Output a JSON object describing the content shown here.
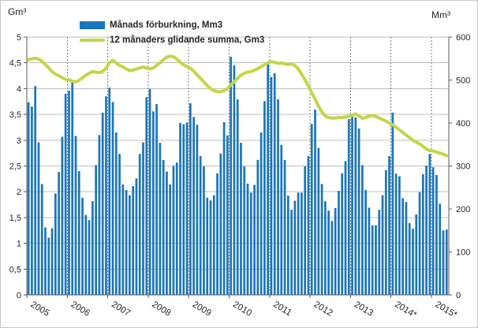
{
  "chart_data": {
    "type": "bar+line",
    "title": "",
    "left_axis": {
      "label": "Gm³",
      "min": 0,
      "max": 5,
      "tick_step": 0.5,
      "tick_labels": [
        "5",
        "4,5",
        "4",
        "3,5",
        "3",
        "2,5",
        "2",
        "1,5",
        "1",
        "0,5",
        "0"
      ]
    },
    "right_axis": {
      "label": "Mm³",
      "min": 0,
      "max": 600,
      "tick_step": 100,
      "tick_labels": [
        "600",
        "500",
        "400",
        "300",
        "200",
        "100",
        "0"
      ]
    },
    "x_axis": {
      "year_labels": [
        "2005",
        "2006",
        "2007",
        "2008",
        "2009",
        "2010",
        "2011",
        "2012",
        "2013",
        "2014*",
        "2015*"
      ],
      "months_per_year": 12,
      "last_year_months": 5
    },
    "legend": [
      {
        "type": "bar",
        "label": "Månads förburkning, Mm3"
      },
      {
        "type": "line",
        "label": "12 månaders glidande summa, Gm3"
      }
    ],
    "colors": {
      "bar": "#1a75bc",
      "line": "#c3d647",
      "grid": "#bfbfbf",
      "year_line": "#7f7f7f",
      "axis": "#595959",
      "text": "#262626"
    },
    "series": [
      {
        "name": "Månads förburkning, Mm3",
        "type": "bar",
        "axis": "right",
        "unit": "Mm3",
        "values": [
          448,
          438,
          486,
          355,
          258,
          157,
          133,
          155,
          236,
          286,
          368,
          468,
          475,
          498,
          370,
          288,
          226,
          186,
          174,
          218,
          302,
          372,
          424,
          462,
          482,
          449,
          378,
          328,
          257,
          244,
          232,
          253,
          271,
          328,
          355,
          460,
          479,
          427,
          444,
          354,
          314,
          287,
          257,
          300,
          308,
          400,
          397,
          401,
          446,
          414,
          396,
          323,
          299,
          226,
          220,
          232,
          283,
          329,
          402,
          371,
          554,
          534,
          455,
          354,
          299,
          259,
          238,
          256,
          314,
          378,
          451,
          538,
          507,
          516,
          455,
          349,
          314,
          231,
          198,
          219,
          238,
          238,
          299,
          323,
          398,
          431,
          342,
          258,
          218,
          196,
          172,
          202,
          242,
          283,
          311,
          409,
          415,
          413,
          387,
          302,
          244,
          203,
          162,
          162,
          198,
          232,
          290,
          323,
          424,
          282,
          276,
          225,
          216,
          167,
          154,
          187,
          239,
          281,
          301,
          328,
          297,
          279,
          212,
          150,
          152
        ]
      },
      {
        "name": "12 månaders glidande summa, Gm3",
        "type": "line",
        "axis": "left",
        "unit": "Gm3",
        "values": [
          4.56,
          4.58,
          4.59,
          4.57,
          4.53,
          4.47,
          4.4,
          4.33,
          4.28,
          4.25,
          4.21,
          4.18,
          4.17,
          4.14,
          4.13,
          4.16,
          4.21,
          4.26,
          4.3,
          4.33,
          4.32,
          4.31,
          4.33,
          4.4,
          4.5,
          4.55,
          4.5,
          4.45,
          4.42,
          4.38,
          4.35,
          4.36,
          4.38,
          4.4,
          4.42,
          4.4,
          4.38,
          4.4,
          4.45,
          4.5,
          4.56,
          4.61,
          4.63,
          4.62,
          4.57,
          4.51,
          4.46,
          4.43,
          4.4,
          4.34,
          4.27,
          4.2,
          4.13,
          4.06,
          4.0,
          3.96,
          3.94,
          3.94,
          3.96,
          4.0,
          4.07,
          4.13,
          4.2,
          4.26,
          4.3,
          4.32,
          4.33,
          4.36,
          4.39,
          4.43,
          4.46,
          4.5,
          4.52,
          4.51,
          4.49,
          4.5,
          4.48,
          4.47,
          4.48,
          4.45,
          4.38,
          4.28,
          4.17,
          4.05,
          3.92,
          3.8,
          3.66,
          3.55,
          3.47,
          3.44,
          3.43,
          3.43,
          3.44,
          3.44,
          3.45,
          3.46,
          3.48,
          3.51,
          3.47,
          3.42,
          3.44,
          3.47,
          3.48,
          3.46,
          3.43,
          3.4,
          3.37,
          3.33,
          3.3,
          3.25,
          3.2,
          3.15,
          3.1,
          3.05,
          3.0,
          2.96,
          2.93,
          2.88,
          2.83,
          2.8,
          2.79,
          2.77,
          2.75,
          2.73,
          2.7
        ]
      }
    ]
  }
}
